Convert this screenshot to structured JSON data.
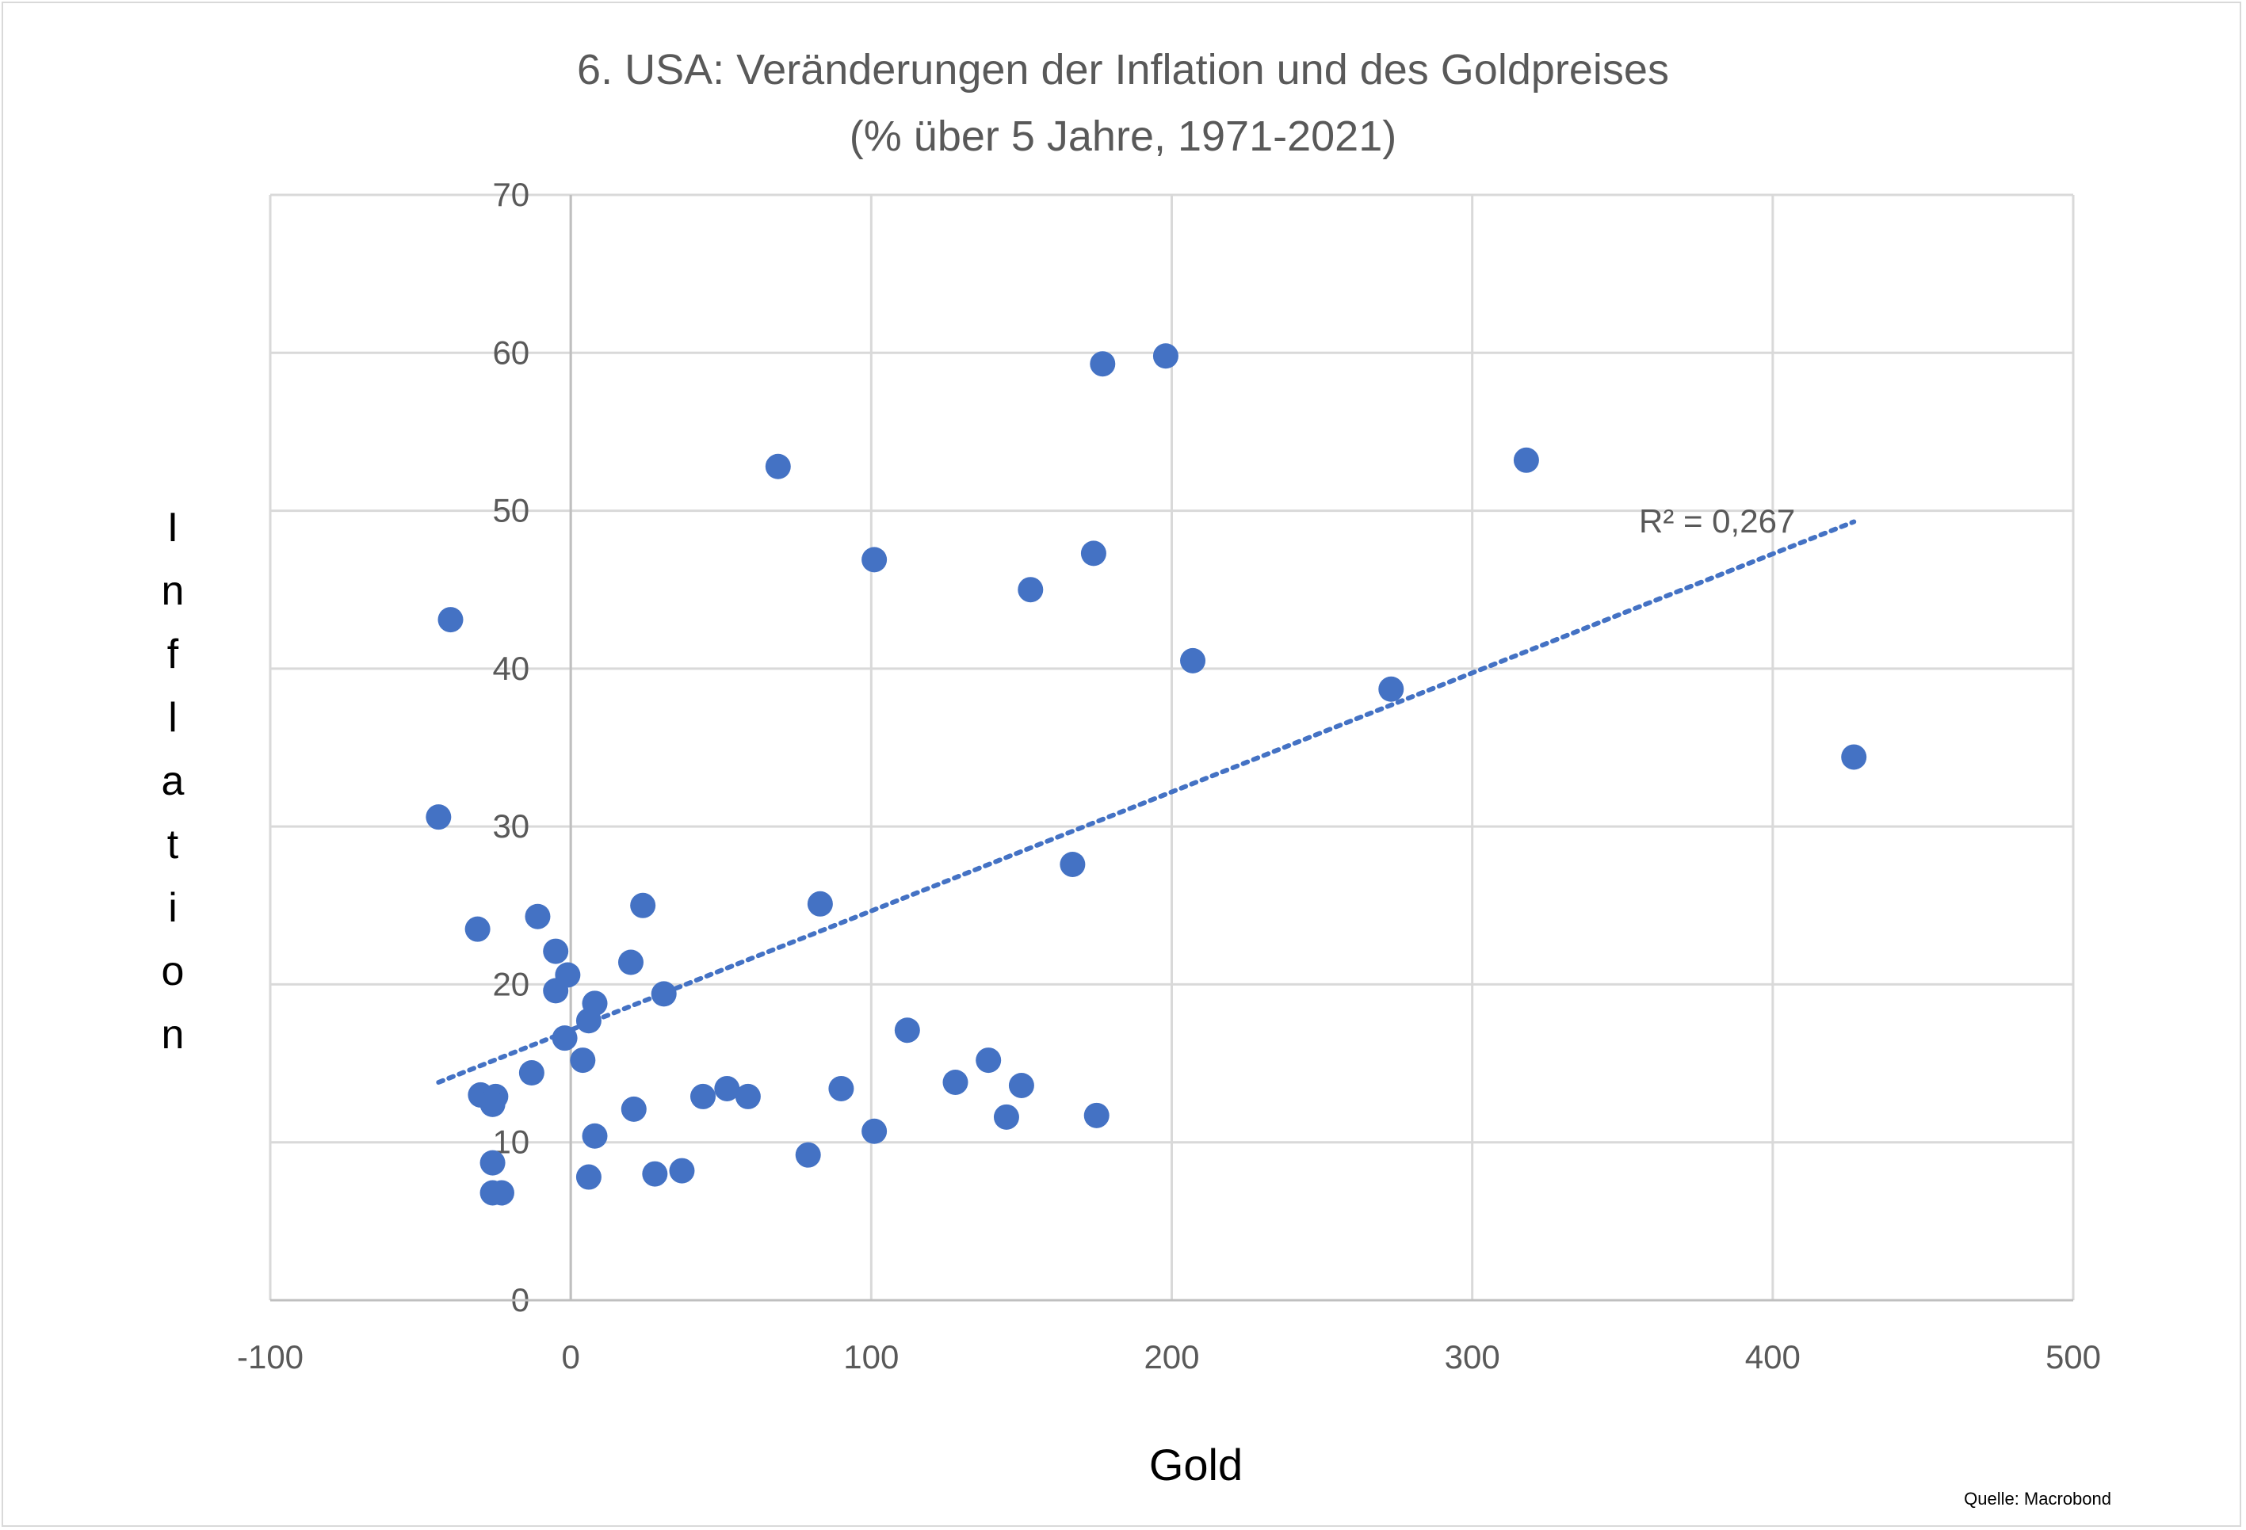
{
  "chart_data": {
    "type": "scatter",
    "title": "6. USA: Veränderungen der Inflation und des Goldpreises",
    "subtitle": "(%  über 5 Jahre, 1971-2021)",
    "xlabel": "Gold",
    "ylabel": "Inflation",
    "xlim": [
      -100,
      500
    ],
    "ylim": [
      0,
      70
    ],
    "xticks": [
      -100,
      0,
      100,
      200,
      300,
      400,
      500
    ],
    "yticks": [
      0,
      10,
      20,
      30,
      40,
      50,
      60,
      70
    ],
    "grid": true,
    "legend": "none",
    "point_color": "#4472c4",
    "series": [
      {
        "points": [
          [
            -40,
            43.1
          ],
          [
            -44,
            30.6
          ],
          [
            -31,
            23.5
          ],
          [
            -11,
            24.3
          ],
          [
            -5,
            22.1
          ],
          [
            -1,
            20.6
          ],
          [
            -5,
            19.6
          ],
          [
            -13,
            14.4
          ],
          [
            -2,
            16.6
          ],
          [
            4,
            15.2
          ],
          [
            6,
            17.7
          ],
          [
            8,
            18.8
          ],
          [
            -30,
            13.0
          ],
          [
            -25,
            12.9
          ],
          [
            -26,
            12.4
          ],
          [
            -26,
            8.7
          ],
          [
            -26,
            6.8
          ],
          [
            -23,
            6.8
          ],
          [
            6,
            7.8
          ],
          [
            8,
            10.4
          ],
          [
            20,
            21.4
          ],
          [
            24,
            25.0
          ],
          [
            31,
            19.4
          ],
          [
            21,
            12.1
          ],
          [
            28,
            8.0
          ],
          [
            37,
            8.2
          ],
          [
            44,
            12.9
          ],
          [
            52,
            13.4
          ],
          [
            59,
            12.9
          ],
          [
            79,
            9.2
          ],
          [
            83,
            25.1
          ],
          [
            90,
            13.4
          ],
          [
            101,
            10.7
          ],
          [
            112,
            17.1
          ],
          [
            128,
            13.8
          ],
          [
            139,
            15.2
          ],
          [
            145,
            11.6
          ],
          [
            150,
            13.6
          ],
          [
            175,
            11.7
          ],
          [
            167,
            27.6
          ],
          [
            69,
            52.8
          ],
          [
            101,
            46.9
          ],
          [
            153,
            45.0
          ],
          [
            174,
            47.3
          ],
          [
            177,
            59.3
          ],
          [
            198,
            59.8
          ],
          [
            207,
            40.5
          ],
          [
            273,
            38.7
          ],
          [
            318,
            53.2
          ],
          [
            427,
            34.4
          ]
        ]
      }
    ],
    "trendline": {
      "type": "linear",
      "style": "dotted",
      "color": "#4472c4",
      "x_range": [
        -44,
        427
      ],
      "y_range": [
        13.8,
        49.3
      ],
      "label": "R² = 0,267"
    },
    "source": "Quelle: Macrobond"
  }
}
